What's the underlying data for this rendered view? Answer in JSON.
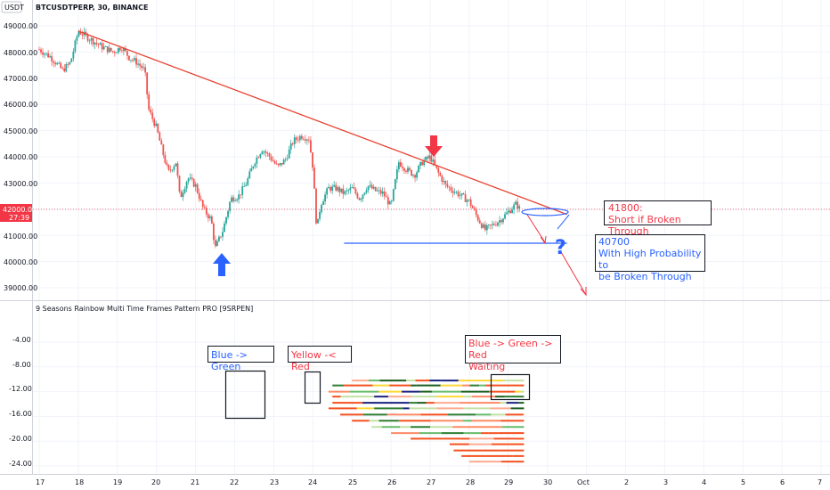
{
  "header": {
    "symbol_title": "BTCUSDTPERP, 30, BINANCE",
    "currency": "USDT",
    "indicator_title": "9 Seasons Rainbow Multi Time Frames Pattern PRO [9SRPEN]"
  },
  "price_axis": {
    "labels": [
      "49000.00",
      "48000.00",
      "47000.00",
      "46000.00",
      "45000.00",
      "44000.00",
      "43000.00",
      "41000.00",
      "40000.00",
      "39000.00"
    ],
    "current_price": "42000.00",
    "current_time": "27:39"
  },
  "indicator_axis": {
    "labels": [
      "-4.00",
      "-8.00",
      "-12.00",
      "-16.00",
      "-20.00",
      "-24.00"
    ]
  },
  "time_axis": {
    "labels": [
      "17",
      "18",
      "19",
      "20",
      "21",
      "22",
      "23",
      "24",
      "25",
      "26",
      "27",
      "28",
      "29",
      "30",
      "Oct",
      "2",
      "3",
      "4",
      "5",
      "6",
      "7"
    ]
  },
  "annotations": {
    "short_level": "41800:",
    "short_text": "Short if Broken Through",
    "support_level": "40700",
    "support_text_1": "With High Probability to",
    "support_text_2": "be Broken Through",
    "note_blue_green": "Blue -> Green",
    "note_yellow_red": "Yellow -< Red",
    "note_waiting_1": "Blue -> Green -> Red",
    "note_waiting_2": "Waiting",
    "question_mark": "?"
  },
  "colors": {
    "trendline": "#e8412f",
    "support_line": "#2962ff",
    "candle_up": "#26a69a",
    "candle_down": "#ef5350",
    "annotation_red": "#f23645",
    "annotation_blue": "#2962ff",
    "price_badge": "#f23645"
  },
  "chart_data": {
    "type": "candlestick",
    "x_range": [
      "17",
      "7 Oct"
    ],
    "y_range": [
      38600,
      49400
    ],
    "price_path": [
      [
        17.0,
        48100
      ],
      [
        17.3,
        47800
      ],
      [
        17.6,
        47300
      ],
      [
        17.8,
        47600
      ],
      [
        18.0,
        48800
      ],
      [
        18.3,
        48500
      ],
      [
        18.6,
        48200
      ],
      [
        18.9,
        48000
      ],
      [
        19.1,
        48200
      ],
      [
        19.3,
        47800
      ],
      [
        19.5,
        47600
      ],
      [
        19.7,
        47300
      ],
      [
        19.8,
        45800
      ],
      [
        20.0,
        45100
      ],
      [
        20.1,
        44500
      ],
      [
        20.3,
        43400
      ],
      [
        20.5,
        43800
      ],
      [
        20.6,
        42400
      ],
      [
        20.8,
        43200
      ],
      [
        21.0,
        42900
      ],
      [
        21.2,
        42000
      ],
      [
        21.4,
        41600
      ],
      [
        21.5,
        40500
      ],
      [
        21.7,
        41200
      ],
      [
        21.9,
        42400
      ],
      [
        22.1,
        42500
      ],
      [
        22.3,
        43000
      ],
      [
        22.5,
        43800
      ],
      [
        22.7,
        44300
      ],
      [
        22.9,
        44000
      ],
      [
        23.1,
        43600
      ],
      [
        23.3,
        43900
      ],
      [
        23.5,
        44600
      ],
      [
        23.7,
        44800
      ],
      [
        23.9,
        44700
      ],
      [
        24.0,
        43600
      ],
      [
        24.1,
        41200
      ],
      [
        24.2,
        42200
      ],
      [
        24.4,
        42800
      ],
      [
        24.6,
        42800
      ],
      [
        24.8,
        42600
      ],
      [
        25.0,
        42800
      ],
      [
        25.2,
        42400
      ],
      [
        25.4,
        42900
      ],
      [
        25.6,
        42700
      ],
      [
        25.8,
        42600
      ],
      [
        26.0,
        42100
      ],
      [
        26.1,
        43000
      ],
      [
        26.2,
        43800
      ],
      [
        26.4,
        43500
      ],
      [
        26.6,
        43300
      ],
      [
        26.8,
        43800
      ],
      [
        27.0,
        44000
      ],
      [
        27.2,
        43400
      ],
      [
        27.4,
        42900
      ],
      [
        27.6,
        42700
      ],
      [
        27.8,
        42500
      ],
      [
        28.0,
        42300
      ],
      [
        28.2,
        41700
      ],
      [
        28.4,
        41200
      ],
      [
        28.6,
        41400
      ],
      [
        28.8,
        41600
      ],
      [
        29.0,
        41900
      ],
      [
        29.2,
        42200
      ],
      [
        29.3,
        42000
      ]
    ],
    "trendline": [
      [
        18.0,
        48800
      ],
      [
        30.5,
        41800
      ]
    ],
    "support_line": [
      [
        24.8,
        40700
      ],
      [
        30.5,
        40700
      ]
    ],
    "indicator_range": [
      -25.2,
      0
    ],
    "indicator_rows": [
      -10.2,
      -11.0,
      -12.0,
      -12.8,
      -13.8,
      -14.7,
      -15.7,
      -16.7,
      -17.7,
      -18.7,
      -19.6,
      -20.5,
      -21.5,
      -22.4,
      -23.3
    ],
    "indicator_row_starts": [
      25.0,
      24.5,
      24.4,
      24.5,
      24.5,
      24.4,
      24.7,
      25.0,
      25.5,
      26.0,
      26.5,
      27.5,
      27.6,
      27.8,
      28.0
    ]
  }
}
